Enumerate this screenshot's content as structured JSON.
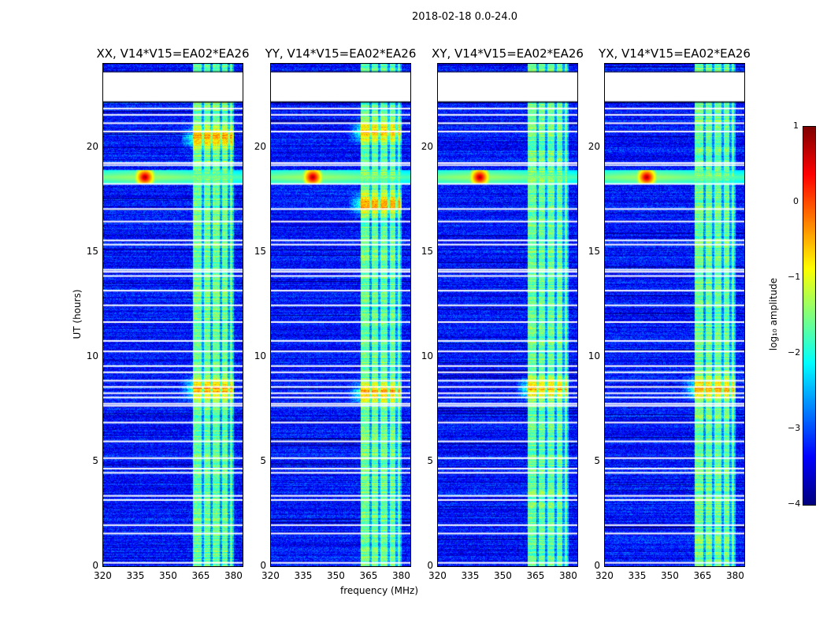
{
  "suptitle": "2018-02-18 0.0-24.0",
  "chart_data": {
    "type": "heatmap",
    "title": "2018-02-18 0.0-24.0",
    "xlabel": "frequency (MHz)",
    "ylabel": "UT (hours)",
    "xlim": [
      320,
      384
    ],
    "ylim": [
      0,
      24
    ],
    "xticks": [
      "320",
      "335",
      "350",
      "365",
      "380"
    ],
    "xtick_values": [
      320,
      335,
      350,
      365,
      380
    ],
    "yticks": [
      "0",
      "5",
      "10",
      "15",
      "20"
    ],
    "ytick_values": [
      0,
      5,
      10,
      15,
      20
    ],
    "panels": [
      {
        "title": "XX, V14*V15=EA02*EA26",
        "hot_times": [
          8.5,
          20.5
        ]
      },
      {
        "title": "YY, V14*V15=EA02*EA26",
        "hot_times": [
          8.3,
          17.3,
          20.8
        ]
      },
      {
        "title": "XY, V14*V15=EA02*EA26",
        "hot_times": [
          8.5
        ]
      },
      {
        "title": "YX, V14*V15=EA02*EA26",
        "hot_times": [
          8.5
        ]
      }
    ],
    "rfi_band_mhz": [
      361,
      380
    ],
    "rfi_point": {
      "freq": 339,
      "time": 18.6
    },
    "flagged_time_ranges": [
      [
        22.2,
        23.6
      ]
    ],
    "flagged_times": [
      0.2,
      1.6,
      2.0,
      3.2,
      3.4,
      4.5,
      4.7,
      5.2,
      6.0,
      6.9,
      7.7,
      7.8,
      8.1,
      8.3,
      8.6,
      8.9,
      9.3,
      9.6,
      10.3,
      10.8,
      11.7,
      12.5,
      13.2,
      13.9,
      14.1,
      14.2,
      15.4,
      15.6,
      16.5,
      17.1,
      18.3,
      19.2,
      19.3,
      20.8,
      21.2,
      21.6,
      21.9
    ],
    "colorbar": {
      "label": "log₁₀ amplitude",
      "range": [
        -4,
        1
      ],
      "ticks": [
        "1",
        "0",
        "−1",
        "−2",
        "−3",
        "−4"
      ],
      "tick_values": [
        1,
        0,
        -1,
        -2,
        -3,
        -4
      ],
      "colormap": "jet"
    }
  }
}
